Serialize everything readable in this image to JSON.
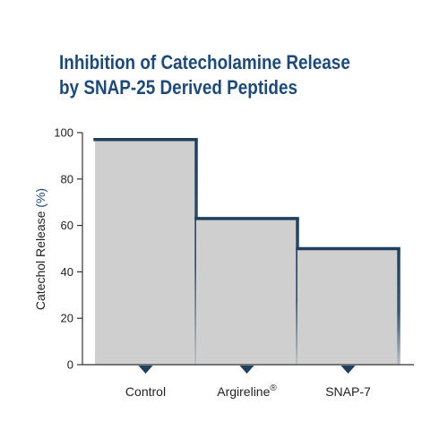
{
  "chart_data": {
    "type": "bar",
    "title_lines": [
      "Inhibition of Catecholamine Release",
      "by SNAP-25 Derived Peptides"
    ],
    "ylabel": "Catechol Release",
    "ylabel_unit": "(%)",
    "xlabel": "",
    "categories": [
      {
        "name": "Control",
        "sup": ""
      },
      {
        "name": "Argireline",
        "sup": "®"
      },
      {
        "name": "SNAP-7",
        "sup": ""
      }
    ],
    "values": [
      97,
      63,
      50
    ],
    "ylim": [
      0,
      100
    ],
    "yticks": [
      0,
      20,
      40,
      60,
      80,
      100
    ],
    "grid": false,
    "colors": {
      "bar_fill": "#cfcfcf",
      "bar_edge": "#1f3f5e",
      "title": "#1f4a78",
      "axis": "#333333",
      "marker": "#1f3f5e"
    }
  }
}
